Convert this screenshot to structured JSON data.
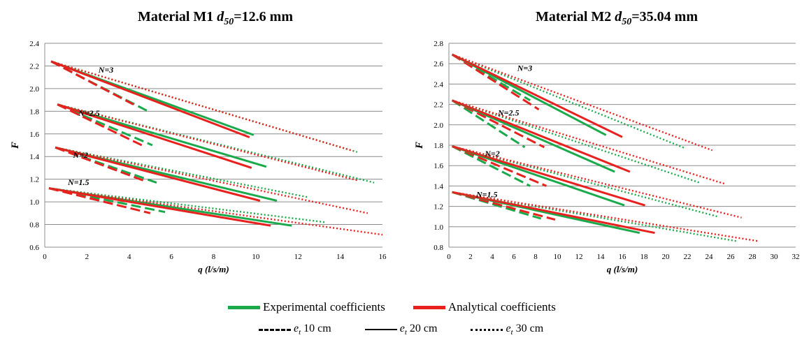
{
  "legend": {
    "experimental": "Experimental coefficients",
    "analytical": "Analytical coefficients",
    "et_symbol": "e",
    "et_sub": "t",
    "et10": " 10 cm",
    "et20": " 20 cm",
    "et30": " 30 cm"
  },
  "chart_data": [
    {
      "type": "line",
      "title_prefix": "Material M1 ",
      "title_var": "d",
      "title_sub": "50",
      "title_suffix": "=12.6 mm",
      "xlabel": "q (l/s/m)",
      "ylabel": "F",
      "xlim": [
        0,
        16
      ],
      "ylim": [
        0.6,
        2.4
      ],
      "xticks": [
        0,
        2,
        4,
        6,
        8,
        10,
        12,
        14,
        16
      ],
      "yticks": [
        "0.6",
        "0.8",
        "1.0",
        "1.2",
        "1.4",
        "1.6",
        "1.8",
        "2.0",
        "2.2",
        "2.4"
      ],
      "grid": "horizontal",
      "annotations": [
        {
          "text": "N=3",
          "x": 2.9,
          "y": 2.14
        },
        {
          "text": "N=2.5",
          "x": 2.1,
          "y": 1.76
        },
        {
          "text": "N=2",
          "x": 1.7,
          "y": 1.39
        },
        {
          "text": "N=1.5",
          "x": 1.6,
          "y": 1.15
        }
      ],
      "series": [
        {
          "group": "N=3",
          "coef": "experimental",
          "et": "10 cm",
          "x": [
            0.3,
            5.0
          ],
          "y": [
            2.24,
            1.79
          ]
        },
        {
          "group": "N=3",
          "coef": "analytical",
          "et": "10 cm",
          "x": [
            0.3,
            4.2
          ],
          "y": [
            2.24,
            1.86
          ]
        },
        {
          "group": "N=3",
          "coef": "experimental",
          "et": "20 cm",
          "x": [
            0.3,
            9.9
          ],
          "y": [
            2.24,
            1.59
          ]
        },
        {
          "group": "N=3",
          "coef": "analytical",
          "et": "20 cm",
          "x": [
            0.3,
            9.7
          ],
          "y": [
            2.24,
            1.57
          ]
        },
        {
          "group": "N=3",
          "coef": "experimental",
          "et": "30 cm",
          "x": [
            0.3,
            14.8
          ],
          "y": [
            2.24,
            1.44
          ]
        },
        {
          "group": "N=3",
          "coef": "analytical",
          "et": "30 cm",
          "x": [
            0.3,
            14.6
          ],
          "y": [
            2.24,
            1.45
          ]
        },
        {
          "group": "N=2.5",
          "coef": "experimental",
          "et": "10 cm",
          "x": [
            0.6,
            5.1
          ],
          "y": [
            1.86,
            1.5
          ]
        },
        {
          "group": "N=2.5",
          "coef": "analytical",
          "et": "10 cm",
          "x": [
            0.6,
            4.6
          ],
          "y": [
            1.86,
            1.5
          ]
        },
        {
          "group": "N=2.5",
          "coef": "experimental",
          "et": "20 cm",
          "x": [
            0.6,
            10.5
          ],
          "y": [
            1.86,
            1.31
          ]
        },
        {
          "group": "N=2.5",
          "coef": "analytical",
          "et": "20 cm",
          "x": [
            0.6,
            9.8
          ],
          "y": [
            1.86,
            1.3
          ]
        },
        {
          "group": "N=2.5",
          "coef": "experimental",
          "et": "30 cm",
          "x": [
            0.6,
            15.6
          ],
          "y": [
            1.86,
            1.17
          ]
        },
        {
          "group": "N=2.5",
          "coef": "analytical",
          "et": "30 cm",
          "x": [
            0.6,
            14.8
          ],
          "y": [
            1.86,
            1.19
          ]
        },
        {
          "group": "N=2",
          "coef": "experimental",
          "et": "10 cm",
          "x": [
            0.5,
            5.3
          ],
          "y": [
            1.48,
            1.17
          ]
        },
        {
          "group": "N=2",
          "coef": "analytical",
          "et": "10 cm",
          "x": [
            0.5,
            4.8
          ],
          "y": [
            1.48,
            1.18
          ]
        },
        {
          "group": "N=2",
          "coef": "experimental",
          "et": "20 cm",
          "x": [
            0.5,
            11.0
          ],
          "y": [
            1.48,
            1.01
          ]
        },
        {
          "group": "N=2",
          "coef": "analytical",
          "et": "20 cm",
          "x": [
            0.5,
            10.2
          ],
          "y": [
            1.48,
            1.01
          ]
        },
        {
          "group": "N=2",
          "coef": "experimental",
          "et": "30 cm",
          "x": [
            0.5,
            12.5
          ],
          "y": [
            1.48,
            1.04
          ]
        },
        {
          "group": "N=2",
          "coef": "analytical",
          "et": "30 cm",
          "x": [
            0.5,
            15.3
          ],
          "y": [
            1.48,
            0.9
          ]
        },
        {
          "group": "N=1.5",
          "coef": "experimental",
          "et": "10 cm",
          "x": [
            0.2,
            5.7
          ],
          "y": [
            1.12,
            0.91
          ]
        },
        {
          "group": "N=1.5",
          "coef": "analytical",
          "et": "10 cm",
          "x": [
            0.2,
            5.0
          ],
          "y": [
            1.12,
            0.9
          ]
        },
        {
          "group": "N=1.5",
          "coef": "experimental",
          "et": "20 cm",
          "x": [
            0.2,
            11.7
          ],
          "y": [
            1.12,
            0.79
          ]
        },
        {
          "group": "N=1.5",
          "coef": "analytical",
          "et": "20 cm",
          "x": [
            0.2,
            10.7
          ],
          "y": [
            1.12,
            0.79
          ]
        },
        {
          "group": "N=1.5",
          "coef": "experimental",
          "et": "30 cm",
          "x": [
            0.2,
            13.3
          ],
          "y": [
            1.12,
            0.82
          ]
        },
        {
          "group": "N=1.5",
          "coef": "analytical",
          "et": "30 cm",
          "x": [
            0.2,
            16.0
          ],
          "y": [
            1.12,
            0.71
          ]
        }
      ]
    },
    {
      "type": "line",
      "title_prefix": "Material M2 ",
      "title_var": "d",
      "title_sub": "50",
      "title_suffix": "=35.04 mm",
      "xlabel": "q (l/s/m)",
      "ylabel": "F",
      "xlim": [
        0,
        32
      ],
      "ylim": [
        0.8,
        2.8
      ],
      "xticks": [
        0,
        2,
        4,
        6,
        8,
        10,
        12,
        14,
        16,
        18,
        20,
        22,
        24,
        26,
        28,
        30,
        32
      ],
      "yticks": [
        "0.8",
        "1.0",
        "1.2",
        "1.4",
        "1.6",
        "1.8",
        "2.0",
        "2.2",
        "2.4",
        "2.6",
        "2.8"
      ],
      "grid": "horizontal",
      "annotations": [
        {
          "text": "N=3",
          "x": 7.0,
          "y": 2.53
        },
        {
          "text": "N=2.5",
          "x": 5.5,
          "y": 2.09
        },
        {
          "text": "N=2",
          "x": 4.0,
          "y": 1.69
        },
        {
          "text": "N=1.5",
          "x": 3.5,
          "y": 1.29
        }
      ],
      "series": [
        {
          "group": "N=3",
          "coef": "experimental",
          "et": "10 cm",
          "x": [
            0.3,
            7.5
          ],
          "y": [
            2.69,
            2.24
          ]
        },
        {
          "group": "N=3",
          "coef": "analytical",
          "et": "10 cm",
          "x": [
            0.3,
            8.3
          ],
          "y": [
            2.69,
            2.15
          ]
        },
        {
          "group": "N=3",
          "coef": "experimental",
          "et": "20 cm",
          "x": [
            0.3,
            14.5
          ],
          "y": [
            2.69,
            1.9
          ]
        },
        {
          "group": "N=3",
          "coef": "analytical",
          "et": "20 cm",
          "x": [
            0.3,
            16.0
          ],
          "y": [
            2.69,
            1.88
          ]
        },
        {
          "group": "N=3",
          "coef": "experimental",
          "et": "30 cm",
          "x": [
            0.3,
            21.8
          ],
          "y": [
            2.69,
            1.77
          ]
        },
        {
          "group": "N=3",
          "coef": "analytical",
          "et": "30 cm",
          "x": [
            0.3,
            24.3
          ],
          "y": [
            2.69,
            1.75
          ]
        },
        {
          "group": "N=2.5",
          "coef": "experimental",
          "et": "10 cm",
          "x": [
            0.3,
            7.0
          ],
          "y": [
            2.24,
            1.78
          ]
        },
        {
          "group": "N=2.5",
          "coef": "analytical",
          "et": "10 cm",
          "x": [
            0.3,
            8.8
          ],
          "y": [
            2.24,
            1.78
          ]
        },
        {
          "group": "N=2.5",
          "coef": "experimental",
          "et": "20 cm",
          "x": [
            0.3,
            15.3
          ],
          "y": [
            2.24,
            1.54
          ]
        },
        {
          "group": "N=2.5",
          "coef": "analytical",
          "et": "20 cm",
          "x": [
            0.3,
            16.7
          ],
          "y": [
            2.24,
            1.54
          ]
        },
        {
          "group": "N=2.5",
          "coef": "experimental",
          "et": "30 cm",
          "x": [
            0.3,
            23.2
          ],
          "y": [
            2.24,
            1.43
          ]
        },
        {
          "group": "N=2.5",
          "coef": "analytical",
          "et": "30 cm",
          "x": [
            0.3,
            25.5
          ],
          "y": [
            2.24,
            1.42
          ]
        },
        {
          "group": "N=2",
          "coef": "experimental",
          "et": "10 cm",
          "x": [
            0.3,
            7.5
          ],
          "y": [
            1.79,
            1.4
          ]
        },
        {
          "group": "N=2",
          "coef": "analytical",
          "et": "10 cm",
          "x": [
            0.3,
            9.0
          ],
          "y": [
            1.79,
            1.4
          ]
        },
        {
          "group": "N=2",
          "coef": "experimental",
          "et": "20 cm",
          "x": [
            0.3,
            16.2
          ],
          "y": [
            1.79,
            1.21
          ]
        },
        {
          "group": "N=2",
          "coef": "analytical",
          "et": "20 cm",
          "x": [
            0.3,
            18.1
          ],
          "y": [
            1.79,
            1.21
          ]
        },
        {
          "group": "N=2",
          "coef": "experimental",
          "et": "30 cm",
          "x": [
            0.3,
            24.8
          ],
          "y": [
            1.79,
            1.1
          ]
        },
        {
          "group": "N=2",
          "coef": "analytical",
          "et": "30 cm",
          "x": [
            0.3,
            27.0
          ],
          "y": [
            1.79,
            1.09
          ]
        },
        {
          "group": "N=1.5",
          "coef": "experimental",
          "et": "10 cm",
          "x": [
            0.3,
            8.5
          ],
          "y": [
            1.34,
            1.08
          ]
        },
        {
          "group": "N=1.5",
          "coef": "analytical",
          "et": "10 cm",
          "x": [
            0.3,
            9.8
          ],
          "y": [
            1.34,
            1.07
          ]
        },
        {
          "group": "N=1.5",
          "coef": "experimental",
          "et": "20 cm",
          "x": [
            0.3,
            17.6
          ],
          "y": [
            1.34,
            0.94
          ]
        },
        {
          "group": "N=1.5",
          "coef": "analytical",
          "et": "20 cm",
          "x": [
            0.3,
            19.0
          ],
          "y": [
            1.34,
            0.94
          ]
        },
        {
          "group": "N=1.5",
          "coef": "experimental",
          "et": "30 cm",
          "x": [
            0.3,
            26.5
          ],
          "y": [
            1.34,
            0.86
          ]
        },
        {
          "group": "N=1.5",
          "coef": "analytical",
          "et": "30 cm",
          "x": [
            0.3,
            28.5
          ],
          "y": [
            1.34,
            0.86
          ]
        }
      ]
    }
  ],
  "colors": {
    "experimental": "#1BAA4B",
    "analytical": "#E8201E",
    "grid": "#8c8c8c",
    "axis": "#8c8c8c"
  }
}
